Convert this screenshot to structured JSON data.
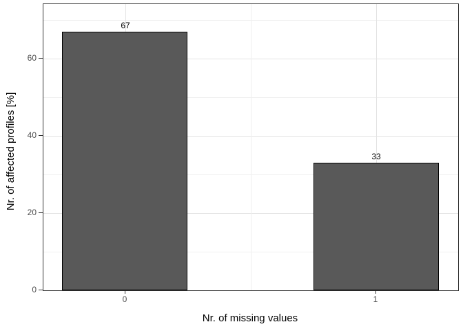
{
  "chart_data": {
    "type": "bar",
    "title": "",
    "xlabel": "Nr. of missing values",
    "ylabel": "Nr. of affected profiles [%]",
    "categories": [
      "0",
      "1"
    ],
    "x": [
      0,
      1
    ],
    "values": [
      67,
      33
    ],
    "bar_labels": [
      "67",
      "33"
    ],
    "bar_width": 0.5,
    "xlim": [
      -0.325,
      1.325
    ],
    "ylim": [
      0,
      74.2
    ],
    "yticks": [
      0,
      20,
      40,
      60
    ],
    "ytick_labels": [
      "0",
      "20",
      "40",
      "60"
    ],
    "yticks_minor": [
      10,
      30,
      50,
      70
    ],
    "xticks_minor": [
      0.5
    ],
    "grid": true,
    "legend_position": "none"
  },
  "colors": {
    "background": "#ffffff",
    "panel_background": "#ffffff",
    "panel_border": "#333333",
    "grid_major": "#e3e3e3",
    "grid_minor": "#efefef",
    "bar_fill": "#595959",
    "bar_border": "#000000",
    "tick_mark": "#333333",
    "tick_label": "#4d4d4d",
    "axis_title": "#000000",
    "bar_label": "#000000"
  }
}
